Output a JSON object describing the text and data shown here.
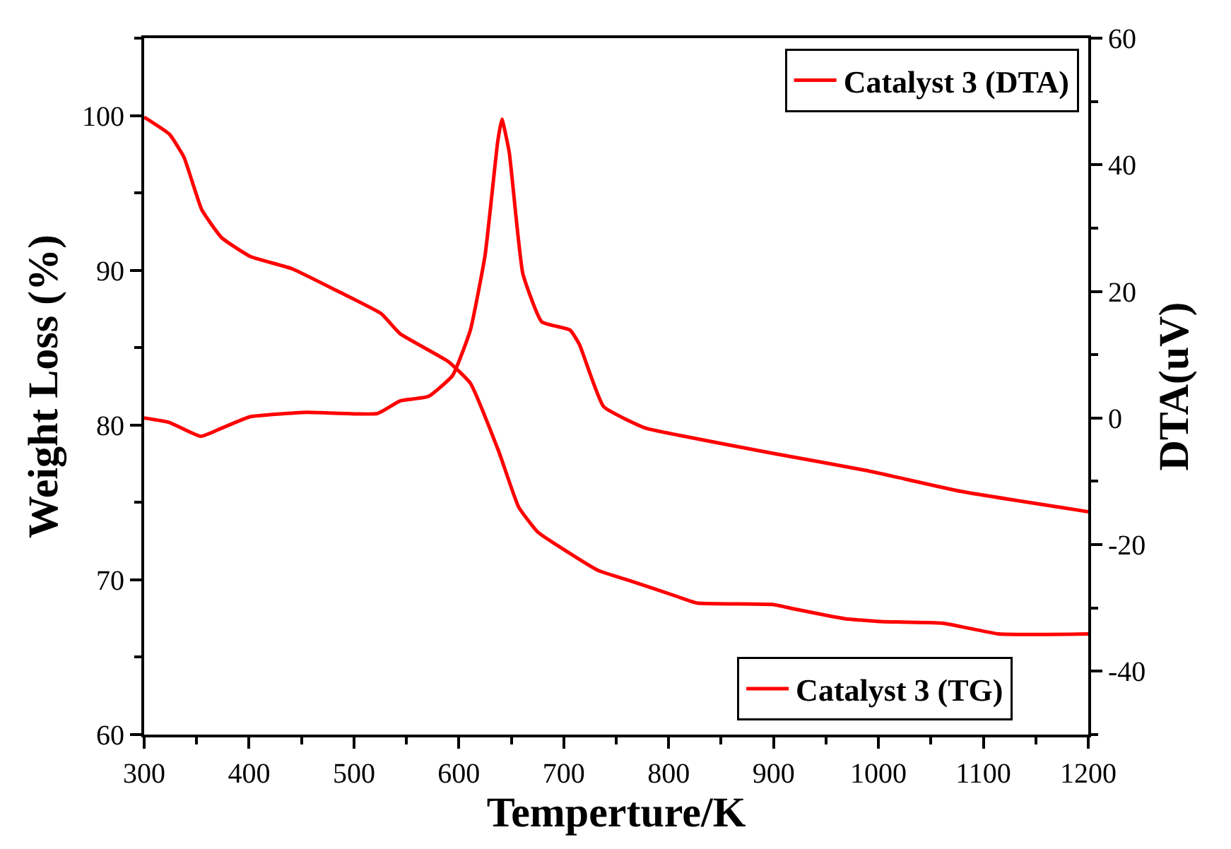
{
  "chart_data": {
    "type": "line",
    "xlabel": "Temperture/K",
    "ylabel": "Weight Loss (%)",
    "y2label": "DTA(uV)",
    "xlim": [
      300,
      1200
    ],
    "xticks": [
      300,
      400,
      500,
      600,
      700,
      800,
      900,
      1000,
      1100,
      1200
    ],
    "ylim": [
      60,
      105
    ],
    "yticks": [
      60,
      70,
      80,
      90,
      100
    ],
    "y2lim": [
      -50,
      60
    ],
    "y2ticks": [
      -40,
      -20,
      0,
      20,
      40,
      60
    ],
    "legend": "right",
    "line_style": "solid",
    "marker": "none",
    "series": [
      {
        "name": "Catalyst 3 (DTA)",
        "color": "#ff0000",
        "axis": "y2",
        "x": [
          300,
          324,
          354,
          374,
          401,
          455,
          522,
          544,
          571,
          594,
          611,
          625,
          637,
          641,
          648,
          661,
          679,
          706,
          715,
          738,
          778,
          809,
          900,
          989,
          1079,
          1200
        ],
        "values": [
          0,
          -0.7,
          -2.9,
          -1.6,
          0.2,
          0.9,
          0.7,
          2.7,
          3.4,
          6.7,
          13.9,
          25.7,
          43.6,
          47.2,
          42,
          22.8,
          15.2,
          13.9,
          11.6,
          1.8,
          -1.6,
          -2.7,
          -5.6,
          -8.3,
          -11.6,
          -14.8
        ]
      },
      {
        "name": "Catalyst 3 (TG)",
        "color": "#ff0000",
        "axis": "y",
        "x": [
          300,
          324,
          338,
          355,
          374,
          401,
          441,
          486,
          526,
          544,
          590,
          611,
          638,
          657,
          675,
          706,
          733,
          765,
          809,
          827,
          900,
          921,
          967,
          1002,
          1061,
          1115,
          1200
        ],
        "values": [
          99.9,
          98.8,
          97.3,
          93.9,
          92.1,
          90.9,
          90.1,
          88.6,
          87.2,
          85.9,
          84.1,
          82.7,
          78.3,
          74.7,
          73.1,
          71.7,
          70.6,
          69.9,
          68.9,
          68.5,
          68.4,
          68.1,
          67.5,
          67.3,
          67.2,
          66.5,
          66.5
        ]
      }
    ]
  }
}
